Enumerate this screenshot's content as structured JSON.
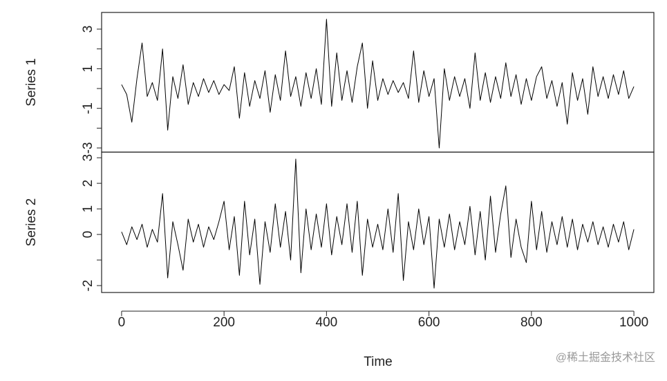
{
  "chart_data": [
    {
      "type": "line",
      "ylabel": "Series 1",
      "color": "#000000",
      "x": [
        0,
        10,
        20,
        30,
        40,
        50,
        60,
        70,
        80,
        90,
        100,
        110,
        120,
        130,
        140,
        150,
        160,
        170,
        180,
        190,
        200,
        210,
        220,
        230,
        240,
        250,
        260,
        270,
        280,
        290,
        300,
        310,
        320,
        330,
        340,
        350,
        360,
        370,
        380,
        390,
        400,
        410,
        420,
        430,
        440,
        450,
        460,
        470,
        480,
        490,
        500,
        510,
        520,
        530,
        540,
        550,
        560,
        570,
        580,
        590,
        600,
        610,
        620,
        630,
        640,
        650,
        660,
        670,
        680,
        690,
        700,
        710,
        720,
        730,
        740,
        750,
        760,
        770,
        780,
        790,
        800,
        810,
        820,
        830,
        840,
        850,
        860,
        870,
        880,
        890,
        900,
        910,
        920,
        930,
        940,
        950,
        960,
        970,
        980,
        990,
        1000
      ],
      "values": [
        0.2,
        -0.3,
        -1.7,
        0.5,
        2.3,
        -0.4,
        0.3,
        -0.6,
        2.0,
        -2.1,
        0.6,
        -0.5,
        1.2,
        -0.8,
        0.3,
        -0.4,
        0.5,
        -0.2,
        0.4,
        -0.3,
        0.2,
        -0.1,
        1.1,
        -1.5,
        0.8,
        -0.9,
        0.4,
        -0.5,
        0.9,
        -1.2,
        0.7,
        -0.6,
        1.9,
        -0.4,
        0.6,
        -0.9,
        0.8,
        -0.5,
        1.0,
        -0.8,
        3.5,
        -0.9,
        1.8,
        -0.6,
        0.9,
        -0.7,
        1.1,
        2.3,
        -1.0,
        1.4,
        -0.6,
        0.5,
        -0.3,
        0.4,
        -0.2,
        0.3,
        -0.5,
        1.9,
        -0.7,
        0.9,
        -0.4,
        0.5,
        -3.0,
        1.0,
        -0.6,
        0.6,
        -0.4,
        0.5,
        -1.0,
        1.8,
        -0.6,
        0.8,
        -0.7,
        0.6,
        -0.5,
        1.3,
        -0.4,
        0.7,
        -0.8,
        0.5,
        -0.6,
        0.6,
        1.1,
        -0.5,
        0.4,
        -0.9,
        0.3,
        -1.8,
        0.8,
        -0.6,
        0.5,
        -1.3,
        1.1,
        -0.4,
        0.6,
        -0.5,
        0.7,
        -0.3,
        0.9,
        -0.5,
        0.1
      ],
      "xlim": [
        -39,
        1039
      ],
      "ylim": [
        -3.21,
        3.84
      ],
      "yticks": [
        -3,
        -1,
        1,
        3
      ],
      "minor_yticks": [
        -2,
        0,
        2
      ]
    },
    {
      "type": "line",
      "ylabel": "Series 2",
      "xlabel": "Time",
      "color": "#000000",
      "x": [
        0,
        10,
        20,
        30,
        40,
        50,
        60,
        70,
        80,
        90,
        100,
        110,
        120,
        130,
        140,
        150,
        160,
        170,
        180,
        190,
        200,
        210,
        220,
        230,
        240,
        250,
        260,
        270,
        280,
        290,
        300,
        310,
        320,
        330,
        340,
        350,
        360,
        370,
        380,
        390,
        400,
        410,
        420,
        430,
        440,
        450,
        460,
        470,
        480,
        490,
        500,
        510,
        520,
        530,
        540,
        550,
        560,
        570,
        580,
        590,
        600,
        610,
        620,
        630,
        640,
        650,
        660,
        670,
        680,
        690,
        700,
        710,
        720,
        730,
        740,
        750,
        760,
        770,
        780,
        790,
        800,
        810,
        820,
        830,
        840,
        850,
        860,
        870,
        880,
        890,
        900,
        910,
        920,
        930,
        940,
        950,
        960,
        970,
        980,
        990,
        1000
      ],
      "values": [
        0.1,
        -0.4,
        0.3,
        -0.2,
        0.4,
        -0.5,
        0.2,
        -0.3,
        1.6,
        -1.7,
        0.5,
        -0.4,
        -1.4,
        0.6,
        -0.3,
        0.4,
        -0.5,
        0.3,
        -0.2,
        0.5,
        1.3,
        -0.6,
        0.7,
        -1.6,
        1.3,
        -0.8,
        0.6,
        -1.95,
        0.5,
        -0.7,
        1.2,
        -0.5,
        0.9,
        -1.0,
        2.95,
        -1.5,
        1.0,
        -0.6,
        0.8,
        -0.5,
        1.2,
        -0.8,
        0.7,
        -0.4,
        1.2,
        -0.7,
        1.3,
        -1.6,
        0.6,
        -0.5,
        0.4,
        -0.6,
        1.0,
        -0.7,
        1.6,
        -1.8,
        0.5,
        -0.6,
        1.0,
        -0.4,
        0.7,
        -2.1,
        0.6,
        -0.5,
        0.8,
        -0.6,
        0.5,
        -0.4,
        1.1,
        -0.8,
        0.9,
        -1.0,
        1.5,
        -0.7,
        0.8,
        1.9,
        -0.9,
        0.6,
        -0.5,
        -1.1,
        1.3,
        -0.6,
        0.9,
        -0.7,
        0.5,
        -0.4,
        0.7,
        -0.5,
        0.6,
        -0.6,
        0.4,
        -0.3,
        0.5,
        -0.4,
        0.3,
        -0.5,
        0.4,
        -0.3,
        0.5,
        -0.6,
        0.2
      ],
      "xlim": [
        -39,
        1039
      ],
      "ylim": [
        -2.27,
        3.22
      ],
      "yticks": [
        -2,
        0,
        1,
        2,
        3
      ],
      "minor_yticks": [
        -1
      ],
      "xticks": [
        0,
        200,
        400,
        600,
        800,
        1000
      ]
    }
  ],
  "watermark": "@稀土掘金技术社区"
}
